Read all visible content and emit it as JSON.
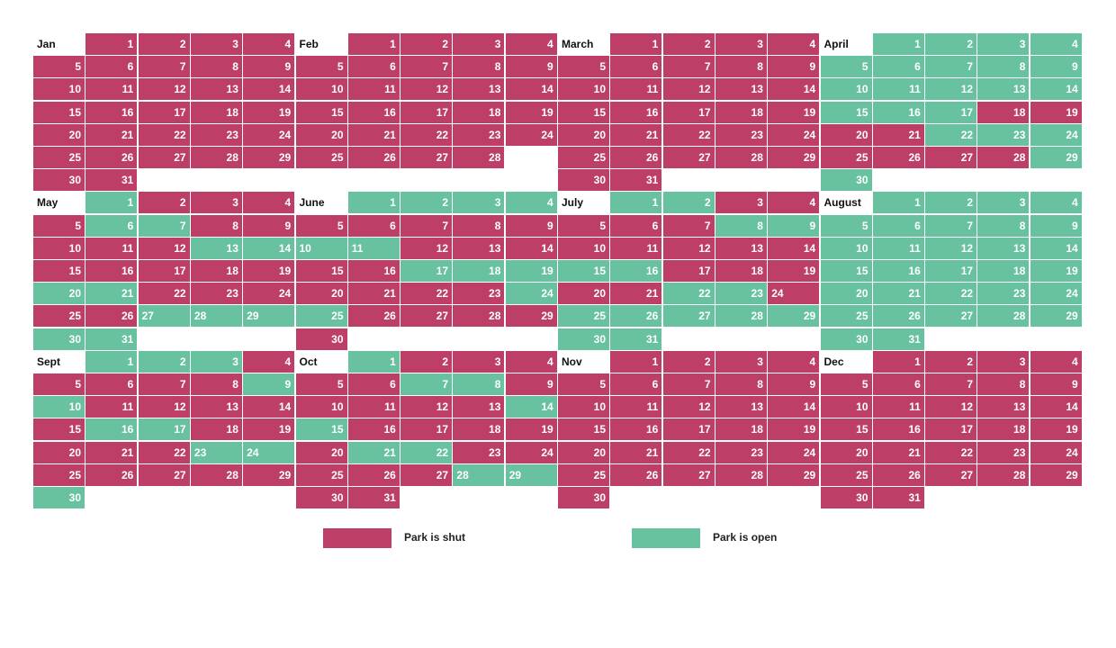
{
  "legend": {
    "shut_label": "Park is shut",
    "open_label": "Park is open"
  },
  "colors": {
    "shut": "#bd3f68",
    "open": "#68c19f"
  },
  "chart_data": {
    "type": "table",
    "title": "",
    "months": [
      {
        "name": "Jan",
        "offset": 1,
        "days": 31,
        "open": []
      },
      {
        "name": "Feb",
        "offset": 1,
        "days": 28,
        "open": []
      },
      {
        "name": "March",
        "offset": 1,
        "days": 31,
        "open": []
      },
      {
        "name": "April",
        "offset": 1,
        "days": 30,
        "open": [
          1,
          2,
          3,
          4,
          5,
          6,
          7,
          8,
          9,
          10,
          11,
          12,
          13,
          14,
          15,
          16,
          17,
          22,
          23,
          24,
          29,
          30
        ]
      },
      {
        "name": "May",
        "offset": 1,
        "days": 31,
        "open": [
          1,
          6,
          7,
          13,
          14,
          20,
          21,
          27,
          28,
          29,
          30,
          31
        ]
      },
      {
        "name": "June",
        "offset": 1,
        "days": 30,
        "open": [
          1,
          2,
          3,
          4,
          10,
          11,
          17,
          18,
          19,
          24,
          25
        ]
      },
      {
        "name": "July",
        "offset": 1,
        "days": 31,
        "open": [
          1,
          2,
          8,
          9,
          15,
          16,
          22,
          23,
          25,
          26,
          27,
          28,
          29,
          30,
          31
        ]
      },
      {
        "name": "August",
        "offset": 1,
        "days": 31,
        "open": [
          1,
          2,
          3,
          4,
          5,
          6,
          7,
          8,
          9,
          10,
          11,
          12,
          13,
          14,
          15,
          16,
          17,
          18,
          19,
          20,
          21,
          22,
          23,
          24,
          25,
          26,
          27,
          28,
          29,
          30,
          31
        ]
      },
      {
        "name": "Sept",
        "offset": 1,
        "days": 30,
        "open": [
          1,
          2,
          3,
          9,
          10,
          16,
          17,
          23,
          24,
          30
        ]
      },
      {
        "name": "Oct",
        "offset": 1,
        "days": 31,
        "open": [
          1,
          7,
          8,
          14,
          15,
          21,
          22,
          28,
          29
        ]
      },
      {
        "name": "Nov",
        "offset": 1,
        "days": 30,
        "open": []
      },
      {
        "name": "Dec",
        "offset": 1,
        "days": 31,
        "open": []
      }
    ],
    "left_aligned": {
      "May": [
        27,
        28,
        29
      ],
      "June": [
        10,
        11
      ],
      "July": [
        24
      ],
      "Sept": [
        23,
        24
      ],
      "Oct": [
        28,
        29
      ]
    }
  }
}
